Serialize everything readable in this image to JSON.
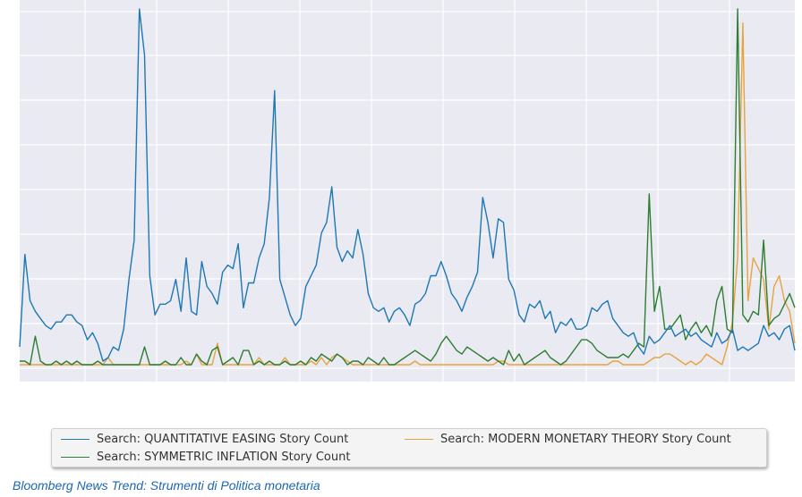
{
  "caption": "Bloomberg News Trend: Strumenti di Politica monetaria",
  "chart_data": {
    "type": "line",
    "title": "",
    "xlabel": "",
    "ylabel": "",
    "grid": true,
    "legend_placement": "bottom",
    "x_count": 150,
    "ylim": [
      0,
      100
    ],
    "series": [
      {
        "name": "Search: QUANTITATIVE EASING Story Count",
        "color": "#1f77b4",
        "values": [
          5,
          31,
          18,
          15,
          13,
          11,
          10,
          12,
          12,
          14,
          14,
          12,
          11,
          7,
          9,
          6,
          1,
          2,
          5,
          4,
          10,
          24,
          35,
          100,
          87,
          25,
          14,
          17,
          17,
          18,
          24,
          15,
          30,
          15,
          14,
          29,
          22,
          20,
          17,
          26,
          28,
          27,
          34,
          16,
          23,
          23,
          30,
          34,
          47,
          77,
          24,
          19,
          14,
          11,
          13,
          22,
          25,
          28,
          37,
          40,
          50,
          33,
          29,
          32,
          30,
          38,
          31,
          20,
          16,
          15,
          16,
          12,
          15,
          16,
          14,
          11,
          17,
          18,
          20,
          25,
          25,
          29,
          25,
          20,
          18,
          15,
          19,
          22,
          26,
          47,
          40,
          30,
          41,
          40,
          24,
          21,
          14,
          12,
          17,
          16,
          18,
          13,
          15,
          9,
          12,
          11,
          13,
          10,
          10,
          11,
          16,
          15,
          17,
          18,
          13,
          11,
          9,
          8,
          9,
          5,
          3,
          8,
          6,
          7,
          9,
          11,
          8,
          9,
          10,
          8,
          9,
          7,
          6,
          5,
          9,
          6,
          7,
          10,
          4,
          5,
          4,
          5,
          6,
          11,
          8,
          9,
          7,
          10,
          11,
          4
        ]
      },
      {
        "name": "Search: SYMMETRIC INFLATION Story Count",
        "color": "#2e7d32",
        "values": [
          1,
          1,
          0,
          8,
          1,
          0,
          0,
          1,
          0,
          1,
          0,
          1,
          0,
          0,
          0,
          1,
          0,
          0,
          0,
          0,
          0,
          0,
          0,
          0,
          5,
          0,
          0,
          0,
          1,
          0,
          0,
          2,
          0,
          0,
          3,
          1,
          0,
          4,
          5,
          0,
          1,
          2,
          0,
          4,
          4,
          0,
          1,
          0,
          1,
          0,
          0,
          1,
          0,
          0,
          1,
          0,
          2,
          1,
          3,
          2,
          1,
          3,
          2,
          0,
          1,
          1,
          0,
          2,
          1,
          0,
          2,
          0,
          0,
          1,
          2,
          3,
          4,
          3,
          2,
          1,
          3,
          6,
          8,
          6,
          4,
          3,
          5,
          4,
          3,
          2,
          1,
          2,
          1,
          0,
          4,
          1,
          3,
          0,
          1,
          2,
          3,
          4,
          2,
          1,
          0,
          1,
          3,
          5,
          7,
          7,
          6,
          4,
          3,
          2,
          2,
          2,
          3,
          2,
          4,
          6,
          5,
          48,
          15,
          22,
          10,
          10,
          12,
          14,
          7,
          10,
          12,
          9,
          11,
          8,
          18,
          22,
          10,
          9,
          100,
          14,
          12,
          15,
          14,
          35,
          11,
          13,
          14,
          17,
          20,
          16
        ]
      },
      {
        "name": "Search: MODERN MONETARY THEORY Story Count",
        "color": "#e8a33d",
        "values": [
          0,
          0,
          0,
          0,
          0,
          0,
          0,
          0,
          0,
          0,
          0,
          0,
          0,
          0,
          0,
          0,
          0,
          2,
          0,
          0,
          0,
          0,
          0,
          0,
          0,
          0,
          0,
          0,
          0,
          0,
          0,
          0,
          1,
          0,
          3,
          0,
          0,
          0,
          6,
          0,
          0,
          0,
          0,
          0,
          0,
          0,
          2,
          0,
          0,
          0,
          0,
          2,
          0,
          0,
          0,
          0,
          1,
          0,
          2,
          0,
          2,
          3,
          2,
          1,
          0,
          0,
          0,
          0,
          0,
          0,
          0,
          0,
          0,
          0,
          0,
          0,
          1,
          0,
          0,
          0,
          0,
          0,
          0,
          0,
          0,
          0,
          0,
          0,
          0,
          0,
          0,
          0,
          1,
          1,
          0,
          0,
          0,
          0,
          0,
          0,
          0,
          0,
          0,
          0,
          0,
          0,
          0,
          0,
          0,
          0,
          0,
          0,
          0,
          0,
          1,
          1,
          0,
          0,
          0,
          0,
          0,
          1,
          2,
          2,
          3,
          3,
          2,
          1,
          0,
          1,
          0,
          1,
          3,
          2,
          1,
          0,
          5,
          12,
          30,
          96,
          18,
          30,
          27,
          24,
          10,
          22,
          25,
          18,
          15,
          6
        ]
      }
    ]
  }
}
